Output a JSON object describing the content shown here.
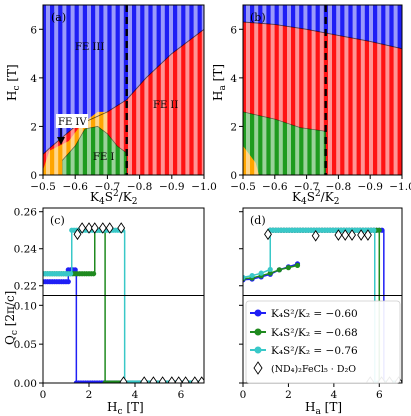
{
  "colors": {
    "fe3": "#1f1ff5",
    "fe2": "#ff1414",
    "fe1": "#1f9b1f",
    "fe4": "#ffa500",
    "stripe": "#ffffff",
    "boundary": "#000000",
    "s060": "#1f1ff5",
    "s068": "#1f8a1f",
    "s076": "#39c8c8"
  },
  "chart_data": [
    {
      "panel": "a",
      "panel_label": "(a)",
      "type": "area",
      "xlabel": "K₄S²/K₂",
      "ylabel": "H_c [T]",
      "xlim": [
        -0.5,
        -1.0
      ],
      "ylim": [
        0,
        7
      ],
      "xticks": [
        -0.5,
        -0.6,
        -0.7,
        -0.8,
        -0.9,
        -1.0
      ],
      "xtick_labels": [
        "−0.5",
        "−0.6",
        "−0.7",
        "−0.8",
        "−0.9",
        "−1.0"
      ],
      "yticks": [
        0,
        2,
        4,
        6
      ],
      "ytick_labels": [
        "0",
        "2",
        "4",
        "6"
      ],
      "dashed_line_x": -0.76,
      "regions": [
        {
          "label": "FE III",
          "color_key": "fe3",
          "label_at": [
            -0.59,
            5.3
          ]
        },
        {
          "label": "FE II",
          "color_key": "fe2",
          "label_at": [
            -0.87,
            2.9
          ]
        },
        {
          "label": "FE I",
          "color_key": "fe1",
          "label_at": [
            -0.65,
            0.75
          ]
        },
        {
          "label": "FE IV",
          "color_key": "fe4",
          "label_at": [
            -0.55,
            2.2
          ]
        }
      ],
      "boundaries": {
        "fe3_upper": [
          [
            -0.5,
            0.85
          ],
          [
            -0.52,
            1.1
          ],
          [
            -0.6,
            2.0
          ],
          [
            -0.7,
            2.6
          ],
          [
            -0.76,
            3.1
          ],
          [
            -0.82,
            4.0
          ],
          [
            -0.9,
            5.0
          ],
          [
            -1.0,
            6.0
          ]
        ],
        "fe4_to_fe2": [
          [
            -0.52,
            1.0
          ],
          [
            -0.58,
            1.4
          ],
          [
            -0.62,
            2.1
          ],
          [
            -0.67,
            2.6
          ],
          [
            -0.7,
            2.6
          ]
        ],
        "fe1_upper": [
          [
            -0.56,
            0.6
          ],
          [
            -0.6,
            1.2
          ],
          [
            -0.63,
            1.9
          ],
          [
            -0.67,
            2.0
          ],
          [
            -0.7,
            1.7
          ],
          [
            -0.73,
            1.2
          ],
          [
            -0.76,
            0.9
          ],
          [
            -0.76,
            0.0
          ]
        ],
        "fe4_lower_strip": [
          [
            -0.5,
            0.2
          ],
          [
            -0.55,
            0.9
          ],
          [
            -0.56,
            0.0
          ]
        ]
      },
      "annotation": {
        "text": "FE IV",
        "arrow_to": [
          -0.535,
          1.15
        ]
      }
    },
    {
      "panel": "b",
      "panel_label": "(b)",
      "type": "area",
      "xlabel": "K₄S²/K₂",
      "ylabel": "H_a [T]",
      "xlim": [
        -0.5,
        -1.0
      ],
      "ylim": [
        0,
        7
      ],
      "xticks": [
        -0.5,
        -0.6,
        -0.7,
        -0.8,
        -0.9,
        -1.0
      ],
      "xtick_labels": [
        "−0.5",
        "−0.6",
        "−0.7",
        "−0.8",
        "−0.9",
        "−1.0"
      ],
      "yticks": [
        0,
        2,
        4,
        6
      ],
      "ytick_labels": [
        "0",
        "2",
        "4",
        "6"
      ],
      "dashed_line_x": -0.76,
      "boundaries": {
        "fe3_lower": [
          [
            -0.5,
            6.3
          ],
          [
            -0.6,
            6.2
          ],
          [
            -0.7,
            6.0
          ],
          [
            -0.8,
            5.75
          ],
          [
            -0.9,
            5.5
          ],
          [
            -1.0,
            5.2
          ]
        ],
        "fe2_lower": [
          [
            -0.5,
            2.6
          ],
          [
            -0.6,
            2.3
          ],
          [
            -0.68,
            1.95
          ],
          [
            -0.76,
            1.8
          ],
          [
            -0.76,
            0.0
          ]
        ],
        "fe4_strip": [
          [
            -0.5,
            1.2
          ],
          [
            -0.54,
            0.5
          ],
          [
            -0.55,
            0.0
          ]
        ]
      }
    },
    {
      "panel": "c",
      "panel_label": "(c)",
      "type": "line",
      "xlabel": "H_c [T]",
      "ylabel": "Q_c [2π/c]",
      "xlim": [
        0,
        7
      ],
      "xticks": [
        0,
        2,
        4,
        6
      ],
      "xtick_labels": [
        "0",
        "2",
        "4",
        "6"
      ],
      "upper_ylim": [
        0.215,
        0.262
      ],
      "upper_yticks": [
        0.22,
        0.24,
        0.26
      ],
      "upper_ytick_labels": [
        "0.22",
        "0.24",
        "0.26"
      ],
      "lower_ylim": [
        0,
        0.112
      ],
      "lower_yticks": [
        0.0,
        0.05,
        0.1
      ],
      "lower_ytick_labels": [
        "0.00",
        "0.05",
        "0.10"
      ],
      "series": [
        {
          "color_key": "s060",
          "plateau_x": [
            0.0,
            1.1
          ],
          "plateau_y": 0.2222,
          "jump_x": 1.1,
          "high_x": [
            1.1,
            1.4
          ],
          "high_y": 0.2286,
          "drop_x": 1.45
        },
        {
          "color_key": "s068",
          "plateau_x": [
            0.0,
            2.25
          ],
          "plateau_y": 0.2265,
          "jump_x": 2.25,
          "high_x": [
            2.25,
            2.65
          ],
          "high_y": 0.25,
          "drop_x": 2.7
        },
        {
          "color_key": "s076",
          "plateau_x": [
            0.0,
            1.25
          ],
          "plateau_y": 0.2265,
          "jump_x": 1.25,
          "high_x": [
            1.25,
            3.45
          ],
          "high_y": 0.25,
          "drop_x": 3.55
        }
      ],
      "experiment": {
        "upper_x": [
          1.5,
          1.7,
          2.0,
          2.25,
          2.6,
          2.9,
          3.4
        ],
        "upper_y": [
          0.2478,
          0.2512,
          0.2512,
          0.2512,
          0.2512,
          0.2512,
          0.2512
        ],
        "lower_x": [
          3.5,
          4.4,
          4.8,
          5.2,
          5.6,
          5.9,
          6.2,
          6.6,
          6.9
        ],
        "lower_y": [
          0.0,
          0.0,
          0.0,
          0.0,
          0.0,
          0.0,
          0.0,
          0.0,
          0.0
        ]
      }
    },
    {
      "panel": "d",
      "panel_label": "(d)",
      "type": "line",
      "xlabel": "H_a [T]",
      "ylabel": "",
      "xlim": [
        0,
        7
      ],
      "xticks": [
        0,
        2,
        4,
        6
      ],
      "xtick_labels": [
        "0",
        "2",
        "4",
        "6"
      ],
      "upper_ylim": [
        0.215,
        0.262
      ],
      "lower_ylim": [
        0,
        0.112
      ],
      "series": [
        {
          "color_key": "s060",
          "rise": [
            [
              0.0,
              0.2232
            ],
            [
              0.4,
              0.2236
            ],
            [
              0.8,
              0.2248
            ],
            [
              1.2,
              0.2262
            ],
            [
              1.6,
              0.2286
            ],
            [
              2.0,
              0.2302
            ],
            [
              2.4,
              0.2318
            ]
          ],
          "plateau_x": [
            1.2,
            6.2
          ],
          "plateau_y": 0.25,
          "drop_x": 6.2
        },
        {
          "color_key": "s068",
          "rise": [
            [
              0.0,
              0.2238
            ],
            [
              0.4,
              0.2242
            ],
            [
              0.8,
              0.2254
            ],
            [
              1.2,
              0.2268
            ],
            [
              1.6,
              0.2286
            ],
            [
              2.0,
              0.2298
            ],
            [
              2.4,
              0.231
            ]
          ],
          "plateau_x": [
            1.2,
            6.0
          ],
          "plateau_y": 0.25,
          "drop_x": 6.0
        },
        {
          "color_key": "s076",
          "rise": [
            [
              0.0,
              0.2245
            ],
            [
              0.4,
              0.2255
            ],
            [
              0.8,
              0.2268
            ],
            [
              1.2,
              0.2288
            ]
          ],
          "plateau_x": [
            1.2,
            5.8
          ],
          "plateau_y": 0.25,
          "drop_x": 5.8
        }
      ],
      "experiment": {
        "upper_x": [
          1.1,
          3.2,
          4.2,
          4.5,
          4.8,
          5.2,
          5.5
        ],
        "upper_y": [
          0.2478,
          0.247,
          0.2474,
          0.2474,
          0.2474,
          0.2474,
          0.2474
        ],
        "lower_x": [
          5.6,
          6.1,
          6.45,
          6.85
        ],
        "lower_y": [
          0.0,
          0.0,
          0.0,
          0.0
        ]
      },
      "legend": {
        "placement": "lower-right",
        "entries": [
          {
            "label": "K₄S²/K₂ = −0.60",
            "color_key": "s060",
            "marker": "circle"
          },
          {
            "label": "K₄S²/K₂ = −0.68",
            "color_key": "s068",
            "marker": "circle"
          },
          {
            "label": "K₄S²/K₂ = −0.76",
            "color_key": "s076",
            "marker": "circle"
          },
          {
            "label": "(ND₄)₂FeCl₅ · D₂O",
            "color_key": "boundary",
            "marker": "diamond"
          }
        ]
      }
    }
  ]
}
